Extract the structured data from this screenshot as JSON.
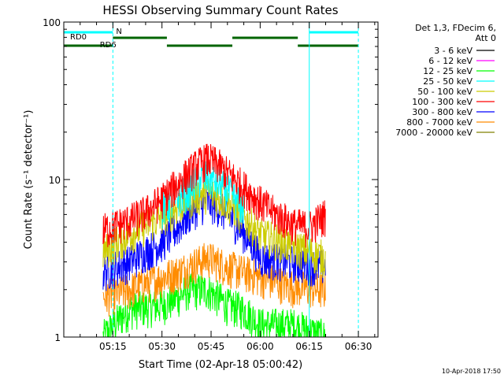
{
  "chart_data": {
    "type": "line",
    "title": "HESSI Observing Summary Count Rates",
    "xlabel": "Start Time (02-Apr-18 05:00:42)",
    "ylabel": "Count Rate (s⁻¹ detector⁻¹)",
    "yscale": "log",
    "ylim": [
      1,
      100
    ],
    "xlim_minutes": [
      0,
      96
    ],
    "x_ticks": [
      {
        "label": "05:15",
        "minute": 15
      },
      {
        "label": "05:30",
        "minute": 30
      },
      {
        "label": "05:45",
        "minute": 45
      },
      {
        "label": "06:00",
        "minute": 60
      },
      {
        "label": "06:15",
        "minute": 75
      },
      {
        "label": "06:30",
        "minute": 90
      }
    ],
    "y_ticks": [
      {
        "label": "1",
        "value": 1
      },
      {
        "label": "10",
        "value": 10
      },
      {
        "label": "100",
        "value": 100
      }
    ],
    "legend_header": [
      "Det 1,3, FDecim 6,",
      "Att 0"
    ],
    "series": [
      {
        "name": "3 - 6 keV",
        "color": "#000000",
        "minute": [],
        "values": []
      },
      {
        "name": "6 - 12 keV",
        "color": "#ff00ff",
        "minute": [],
        "values": []
      },
      {
        "name": "12 - 25 keV",
        "color": "#00ff00",
        "minute": [
          12,
          20,
          30,
          35,
          38,
          41,
          44,
          47,
          50,
          55,
          60,
          70,
          80
        ],
        "values": [
          1,
          1.5,
          1.6,
          1.8,
          2.0,
          2.0,
          2.0,
          1.8,
          1.6,
          1.5,
          1.2,
          1.2,
          1
        ]
      },
      {
        "name": "25 - 50 keV",
        "color": "#00ffff",
        "minute": [
          30,
          38,
          41,
          44,
          47,
          50,
          55
        ],
        "values": [
          6.5,
          8.5,
          10,
          10.5,
          9.5,
          8.5,
          6.5
        ]
      },
      {
        "name": "50 - 100 keV",
        "color": "#cccc00",
        "minute": [
          12,
          20,
          30,
          35,
          38,
          41,
          44,
          47,
          50,
          55,
          60,
          70,
          80
        ],
        "values": [
          3.5,
          4.5,
          5.8,
          6.8,
          7.5,
          8.0,
          8.3,
          7.8,
          7.2,
          5.8,
          4.5,
          3.8,
          3.2
        ]
      },
      {
        "name": "100 - 300 keV",
        "color": "#ff0000",
        "minute": [
          12,
          20,
          25,
          30,
          35,
          38,
          41,
          44,
          47,
          50,
          55,
          60,
          65,
          70,
          75,
          80
        ],
        "values": [
          4.8,
          5.5,
          6.2,
          7.5,
          9.5,
          11,
          12.5,
          13.5,
          12.5,
          11,
          9.0,
          7.2,
          6.0,
          5.2,
          5.0,
          6.0
        ]
      },
      {
        "name": "300 - 800 keV",
        "color": "#0000ff",
        "minute": [
          12,
          20,
          30,
          35,
          38,
          41,
          44,
          47,
          50,
          55,
          60,
          70,
          80
        ],
        "values": [
          2.6,
          3.0,
          4.0,
          5.0,
          6.0,
          6.8,
          7.2,
          6.8,
          6.0,
          4.6,
          3.2,
          3.0,
          2.8
        ]
      },
      {
        "name": "800 - 7000 keV",
        "color": "#ff8c00",
        "minute": [
          12,
          20,
          30,
          35,
          38,
          41,
          44,
          47,
          50,
          55,
          60,
          70,
          80
        ],
        "values": [
          1.8,
          2.0,
          2.4,
          2.6,
          2.8,
          3.0,
          3.2,
          3.0,
          2.8,
          2.6,
          2.4,
          2.1,
          2.0
        ]
      },
      {
        "name": "7000 - 20000 keV",
        "color": "#808000",
        "minute": [],
        "values": []
      }
    ],
    "state_bars": [
      {
        "label": "RD0",
        "color": "#006400",
        "segments": [
          [
            15,
            31.5
          ],
          [
            51.5,
            71.5
          ]
        ]
      },
      {
        "label": "RD6",
        "color": "#006400",
        "segments": [
          [
            0,
            15
          ],
          [
            31.5,
            51.5
          ],
          [
            71.5,
            90
          ]
        ]
      },
      {
        "label": "N",
        "color": "#00ffff",
        "segments": [
          [
            0,
            15
          ],
          [
            75,
            90
          ]
        ]
      }
    ],
    "event_markers_minute": [
      15,
      75,
      90
    ],
    "event_marker_color": "#00ffff"
  },
  "footer": {
    "timestamp": "10-Apr-2018 17:50"
  },
  "colors": {
    "axis": "#000000",
    "marker": "#00ffff",
    "background": "#ffffff"
  }
}
